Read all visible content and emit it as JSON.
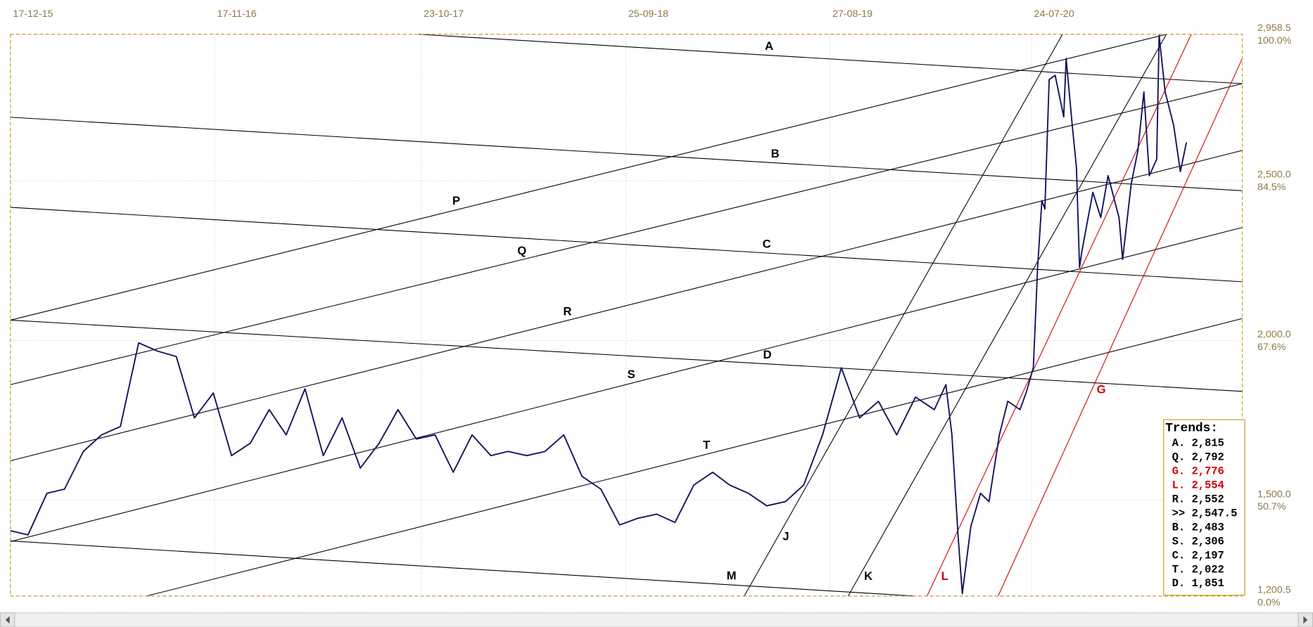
{
  "chart_data": {
    "type": "line",
    "color": "#14145e",
    "x": [
      "17-12-15",
      "15-01-16",
      "15-02-16",
      "15-03-16",
      "15-04-16",
      "15-05-16",
      "15-06-16",
      "15-07-16",
      "15-08-16",
      "15-09-16",
      "15-10-16",
      "15-11-16",
      "15-12-16",
      "15-01-17",
      "15-02-17",
      "15-03-17",
      "15-04-17",
      "15-05-17",
      "15-06-17",
      "15-07-17",
      "15-08-17",
      "15-09-17",
      "15-10-17",
      "15-11-17",
      "15-12-17",
      "15-01-18",
      "15-02-18",
      "15-03-18",
      "15-04-18",
      "15-05-18",
      "15-06-18",
      "15-07-18",
      "15-08-18",
      "15-09-18",
      "15-10-18",
      "15-11-18",
      "15-12-18",
      "15-01-19",
      "15-02-19",
      "15-03-19",
      "15-04-19",
      "15-05-19",
      "15-06-19",
      "15-07-19",
      "15-08-19",
      "15-09-19",
      "15-10-19",
      "15-11-19",
      "15-12-19",
      "15-01-20",
      "15-02-20",
      "05-03-20",
      "15-03-20",
      "25-03-20",
      "01-04-20",
      "15-04-20",
      "01-05-20",
      "15-05-20",
      "01-06-20",
      "15-06-20",
      "05-07-20",
      "15-07-20",
      "27-07-20",
      "03-08-20",
      "10-08-20",
      "15-08-20",
      "22-08-20",
      "01-09-20",
      "15-09-20",
      "19-09-20",
      "29-09-20",
      "06-10-20",
      "11-10-20",
      "15-10-20",
      "02-11-20",
      "15-11-20",
      "27-11-20",
      "15-12-20",
      "21-12-20",
      "04-01-21",
      "15-01-21",
      "25-01-21",
      "03-02-21",
      "15-02-21",
      "19-02-21",
      "01-03-21",
      "15-03-21",
      "26-03-21",
      "05-04-21"
    ],
    "values": [
      1405,
      1392,
      1522,
      1535,
      1653,
      1705,
      1731,
      1993,
      1967,
      1950,
      1758,
      1836,
      1640,
      1679,
      1784,
      1705,
      1849,
      1640,
      1758,
      1601,
      1679,
      1784,
      1692,
      1705,
      1588,
      1705,
      1640,
      1653,
      1640,
      1653,
      1705,
      1575,
      1535,
      1423,
      1444,
      1457,
      1431,
      1548,
      1588,
      1548,
      1522,
      1483,
      1496,
      1548,
      1705,
      1915,
      1758,
      1810,
      1705,
      1823,
      1784,
      1862,
      1705,
      1392,
      1208,
      1418,
      1522,
      1496,
      1705,
      1810,
      1784,
      1836,
      1915,
      2229,
      2438,
      2412,
      2817,
      2830,
      2700,
      2883,
      2673,
      2542,
      2229,
      2281,
      2464,
      2385,
      2516,
      2385,
      2254,
      2490,
      2594,
      2778,
      2516,
      2568,
      2955,
      2778,
      2673,
      2529,
      2620
    ],
    "xlim": [
      "17-12-15",
      "06-07-21"
    ],
    "xticks": [
      "17-12-15",
      "17-11-16",
      "23-10-17",
      "25-09-18",
      "27-08-19",
      "24-07-20"
    ],
    "ylim": [
      1200.5,
      2958.5
    ],
    "yticks": [
      {
        "value": 2958.5,
        "label": "2,958.5"
      },
      {
        "value": 2500,
        "label": "2,500.0"
      },
      {
        "value": 2000,
        "label": "2,000.0"
      },
      {
        "value": 1500,
        "label": "1,500.0"
      },
      {
        "value": 1200.5,
        "label": "1,200.5"
      }
    ],
    "ytick_percent_labels": [
      "100.0%",
      "84.5%",
      "67.6%",
      "50.7%",
      "0.0%"
    ],
    "grid": true,
    "trend_lines": [
      {
        "label": "A",
        "color": "#000000",
        "start": [
          "19-10-17",
          2958.5
        ],
        "end": [
          "06-07-21",
          2804
        ],
        "label_at": "19-05-19"
      },
      {
        "label": "B",
        "color": "#000000",
        "start": [
          "17-12-15",
          2699
        ],
        "end": [
          "06-07-21",
          2469
        ],
        "label_at": "29-05-19"
      },
      {
        "label": "C",
        "color": "#000000",
        "start": [
          "17-12-15",
          2417
        ],
        "end": [
          "06-07-21",
          2184
        ],
        "label_at": "15-05-19"
      },
      {
        "label": "D",
        "color": "#000000",
        "start": [
          "17-12-15",
          2064
        ],
        "end": [
          "06-07-21",
          1841
        ],
        "label_at": "16-05-19"
      },
      {
        "label": "M",
        "color": "#000000",
        "start": [
          "17-12-15",
          1373
        ],
        "end": [
          "14-01-20",
          1200.5
        ],
        "label_at": "18-03-19"
      },
      {
        "label": "P",
        "color": "#000000",
        "start": [
          "17-12-15",
          2064
        ],
        "end": [
          "03-03-21",
          2958.5
        ],
        "label_at": "20-12-17"
      },
      {
        "label": "Q",
        "color": "#000000",
        "start": [
          "17-12-15",
          1862
        ],
        "end": [
          "06-07-21",
          2804
        ],
        "label_at": "07-04-18"
      },
      {
        "label": "R",
        "color": "#000000",
        "start": [
          "17-12-15",
          1624
        ],
        "end": [
          "06-07-21",
          2595
        ],
        "label_at": "21-06-18"
      },
      {
        "label": "S",
        "color": "#000000",
        "start": [
          "17-12-15",
          1371
        ],
        "end": [
          "06-07-21",
          2354
        ],
        "label_at": "04-10-18"
      },
      {
        "label": "T",
        "color": "#000000",
        "start": [
          "28-07-16",
          1200.5
        ],
        "end": [
          "06-07-21",
          2069
        ],
        "label_at": "05-02-19"
      },
      {
        "label": "J",
        "color": "#000000",
        "start": [
          "08-04-19",
          1200.5
        ],
        "end": [
          "13-09-20",
          2958.5
        ],
        "label_at": "02-06-19"
      },
      {
        "label": "K",
        "color": "#000000",
        "start": [
          "26-09-19",
          1200.5
        ],
        "end": [
          "03-03-21",
          2958.5
        ],
        "label_at": "14-10-19"
      },
      {
        "label": "L",
        "color": "#d00000",
        "start": [
          "03-02-20",
          1200.5
        ],
        "end": [
          "13-04-21",
          2958.5
        ],
        "label_at": "18-02-20"
      },
      {
        "label": "G",
        "color": "#d00000",
        "start": [
          "30-05-20",
          1200.5
        ],
        "end": [
          "06-07-21",
          2883
        ],
        "label_at": "31-10-20"
      }
    ],
    "trends_panel": {
      "title": "Trends:",
      "rows": [
        {
          "text": "A. 2,815",
          "color": "#000000"
        },
        {
          "text": "Q. 2,792",
          "color": "#000000"
        },
        {
          "text": "G. 2,776",
          "color": "#d00000"
        },
        {
          "text": "L. 2,554",
          "color": "#d00000"
        },
        {
          "text": "R. 2,552",
          "color": "#000000"
        },
        {
          "text": ">> 2,547.5",
          "color": "#000000"
        },
        {
          "text": "B. 2,483",
          "color": "#000000"
        },
        {
          "text": "S. 2,306",
          "color": "#000000"
        },
        {
          "text": "C. 2,197",
          "color": "#000000"
        },
        {
          "text": "T. 2,022",
          "color": "#000000"
        },
        {
          "text": "D. 1,851",
          "color": "#000000"
        }
      ]
    }
  }
}
